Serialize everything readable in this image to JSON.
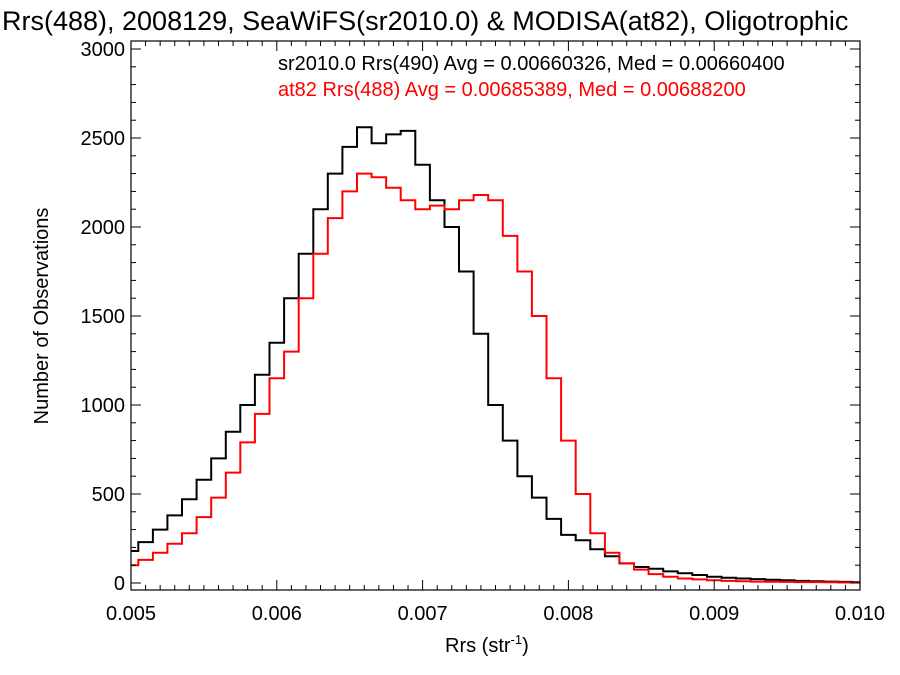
{
  "chart_data": {
    "type": "line",
    "title": "Rrs(488), 2008129, SeaWiFS(sr2010.0) & MODISA(at82), Oligotrophic",
    "xlabel": "Rrs (str",
    "xlabel_sup": "-1",
    "xlabel_close": ")",
    "ylabel": "Number of Observations",
    "xlim": [
      0.005,
      0.01
    ],
    "ylim": [
      0,
      3000
    ],
    "grid": false,
    "xticks": [
      {
        "value": 0.005,
        "label": "0.005"
      },
      {
        "value": 0.006,
        "label": "0.006"
      },
      {
        "value": 0.007,
        "label": "0.007"
      },
      {
        "value": 0.008,
        "label": "0.008"
      },
      {
        "value": 0.009,
        "label": "0.009"
      },
      {
        "value": 0.01,
        "label": "0.010"
      }
    ],
    "yticks": [
      {
        "value": 0,
        "label": "0"
      },
      {
        "value": 500,
        "label": "500"
      },
      {
        "value": 1000,
        "label": "1000"
      },
      {
        "value": 1500,
        "label": "1500"
      },
      {
        "value": 2000,
        "label": "2000"
      },
      {
        "value": 2500,
        "label": "2500"
      },
      {
        "value": 3000,
        "label": "3000"
      }
    ],
    "annotations": [
      {
        "text": "sr2010.0 Rrs(490) Avg = 0.00660326, Med = 0.00660400",
        "color": "#000000"
      },
      {
        "text": "at82 Rrs(488) Avg = 0.00685389, Med = 0.00688200",
        "color": "#ff0000"
      }
    ],
    "series": [
      {
        "color": "#000000",
        "x": [
          0.005,
          0.0051,
          0.0052,
          0.0053,
          0.0054,
          0.0055,
          0.0056,
          0.0057,
          0.0058,
          0.0059,
          0.006,
          0.0061,
          0.0062,
          0.0063,
          0.0064,
          0.0065,
          0.0066,
          0.0067,
          0.0068,
          0.0069,
          0.007,
          0.0071,
          0.0072,
          0.0073,
          0.0074,
          0.0075,
          0.0076,
          0.0077,
          0.0078,
          0.0079,
          0.008,
          0.0081,
          0.0082,
          0.0083,
          0.0084,
          0.0085,
          0.0086,
          0.0087,
          0.0088,
          0.0089,
          0.009,
          0.0091,
          0.0092,
          0.0093,
          0.0094,
          0.0095,
          0.0096,
          0.0097,
          0.0098,
          0.0099,
          0.01
        ],
        "y": [
          180,
          230,
          300,
          380,
          470,
          580,
          700,
          850,
          1000,
          1170,
          1350,
          1600,
          1850,
          2100,
          2300,
          2450,
          2560,
          2470,
          2520,
          2540,
          2350,
          2150,
          2000,
          1750,
          1400,
          1000,
          800,
          600,
          480,
          360,
          270,
          240,
          190,
          150,
          110,
          90,
          80,
          65,
          55,
          45,
          35,
          30,
          25,
          22,
          18,
          15,
          12,
          10,
          8,
          6,
          5
        ]
      },
      {
        "color": "#ff0000",
        "x": [
          0.005,
          0.0051,
          0.0052,
          0.0053,
          0.0054,
          0.0055,
          0.0056,
          0.0057,
          0.0058,
          0.0059,
          0.006,
          0.0061,
          0.0062,
          0.0063,
          0.0064,
          0.0065,
          0.0066,
          0.0067,
          0.0068,
          0.0069,
          0.007,
          0.0071,
          0.0072,
          0.0073,
          0.0074,
          0.0075,
          0.0076,
          0.0077,
          0.0078,
          0.0079,
          0.008,
          0.0081,
          0.0082,
          0.0083,
          0.0084,
          0.0085,
          0.0086,
          0.0087,
          0.0088,
          0.0089,
          0.009,
          0.0091,
          0.0092,
          0.0093,
          0.0094,
          0.0095,
          0.0096,
          0.0097,
          0.0098,
          0.0099,
          0.01
        ],
        "y": [
          100,
          130,
          170,
          220,
          280,
          370,
          480,
          620,
          790,
          950,
          1150,
          1300,
          1600,
          1850,
          2050,
          2200,
          2300,
          2280,
          2220,
          2150,
          2100,
          2120,
          2100,
          2150,
          2180,
          2150,
          1950,
          1750,
          1500,
          1150,
          800,
          500,
          280,
          170,
          110,
          75,
          50,
          35,
          25,
          20,
          15,
          12,
          10,
          8,
          7,
          6,
          5,
          5,
          4,
          3,
          3
        ]
      }
    ]
  }
}
